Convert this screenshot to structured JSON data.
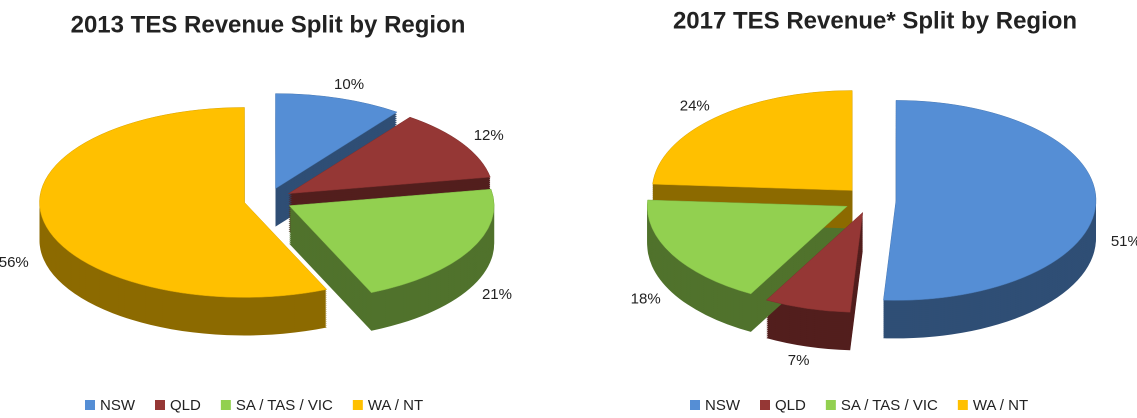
{
  "chart_data": [
    {
      "type": "pie",
      "title": "2013 TES Revenue Split by Region",
      "categories": [
        "NSW",
        "QLD",
        "SA / TAS / VIC",
        "WA / NT"
      ],
      "values": [
        10,
        12,
        21,
        56
      ],
      "value_labels": [
        "10%",
        "12%",
        "21%",
        "56%"
      ],
      "colors": [
        "#558ed5",
        "#953735",
        "#92d050",
        "#ffc000"
      ],
      "legend": "bottom"
    },
    {
      "type": "pie",
      "title": "2017 TES Revenue* Split by Region",
      "categories": [
        "NSW",
        "QLD",
        "SA / TAS / VIC",
        "WA / NT"
      ],
      "values": [
        51,
        7,
        18,
        24
      ],
      "value_labels": [
        "51%",
        "7%",
        "18%",
        "24%"
      ],
      "colors": [
        "#558ed5",
        "#953735",
        "#92d050",
        "#ffc000"
      ],
      "legend": "bottom"
    }
  ]
}
